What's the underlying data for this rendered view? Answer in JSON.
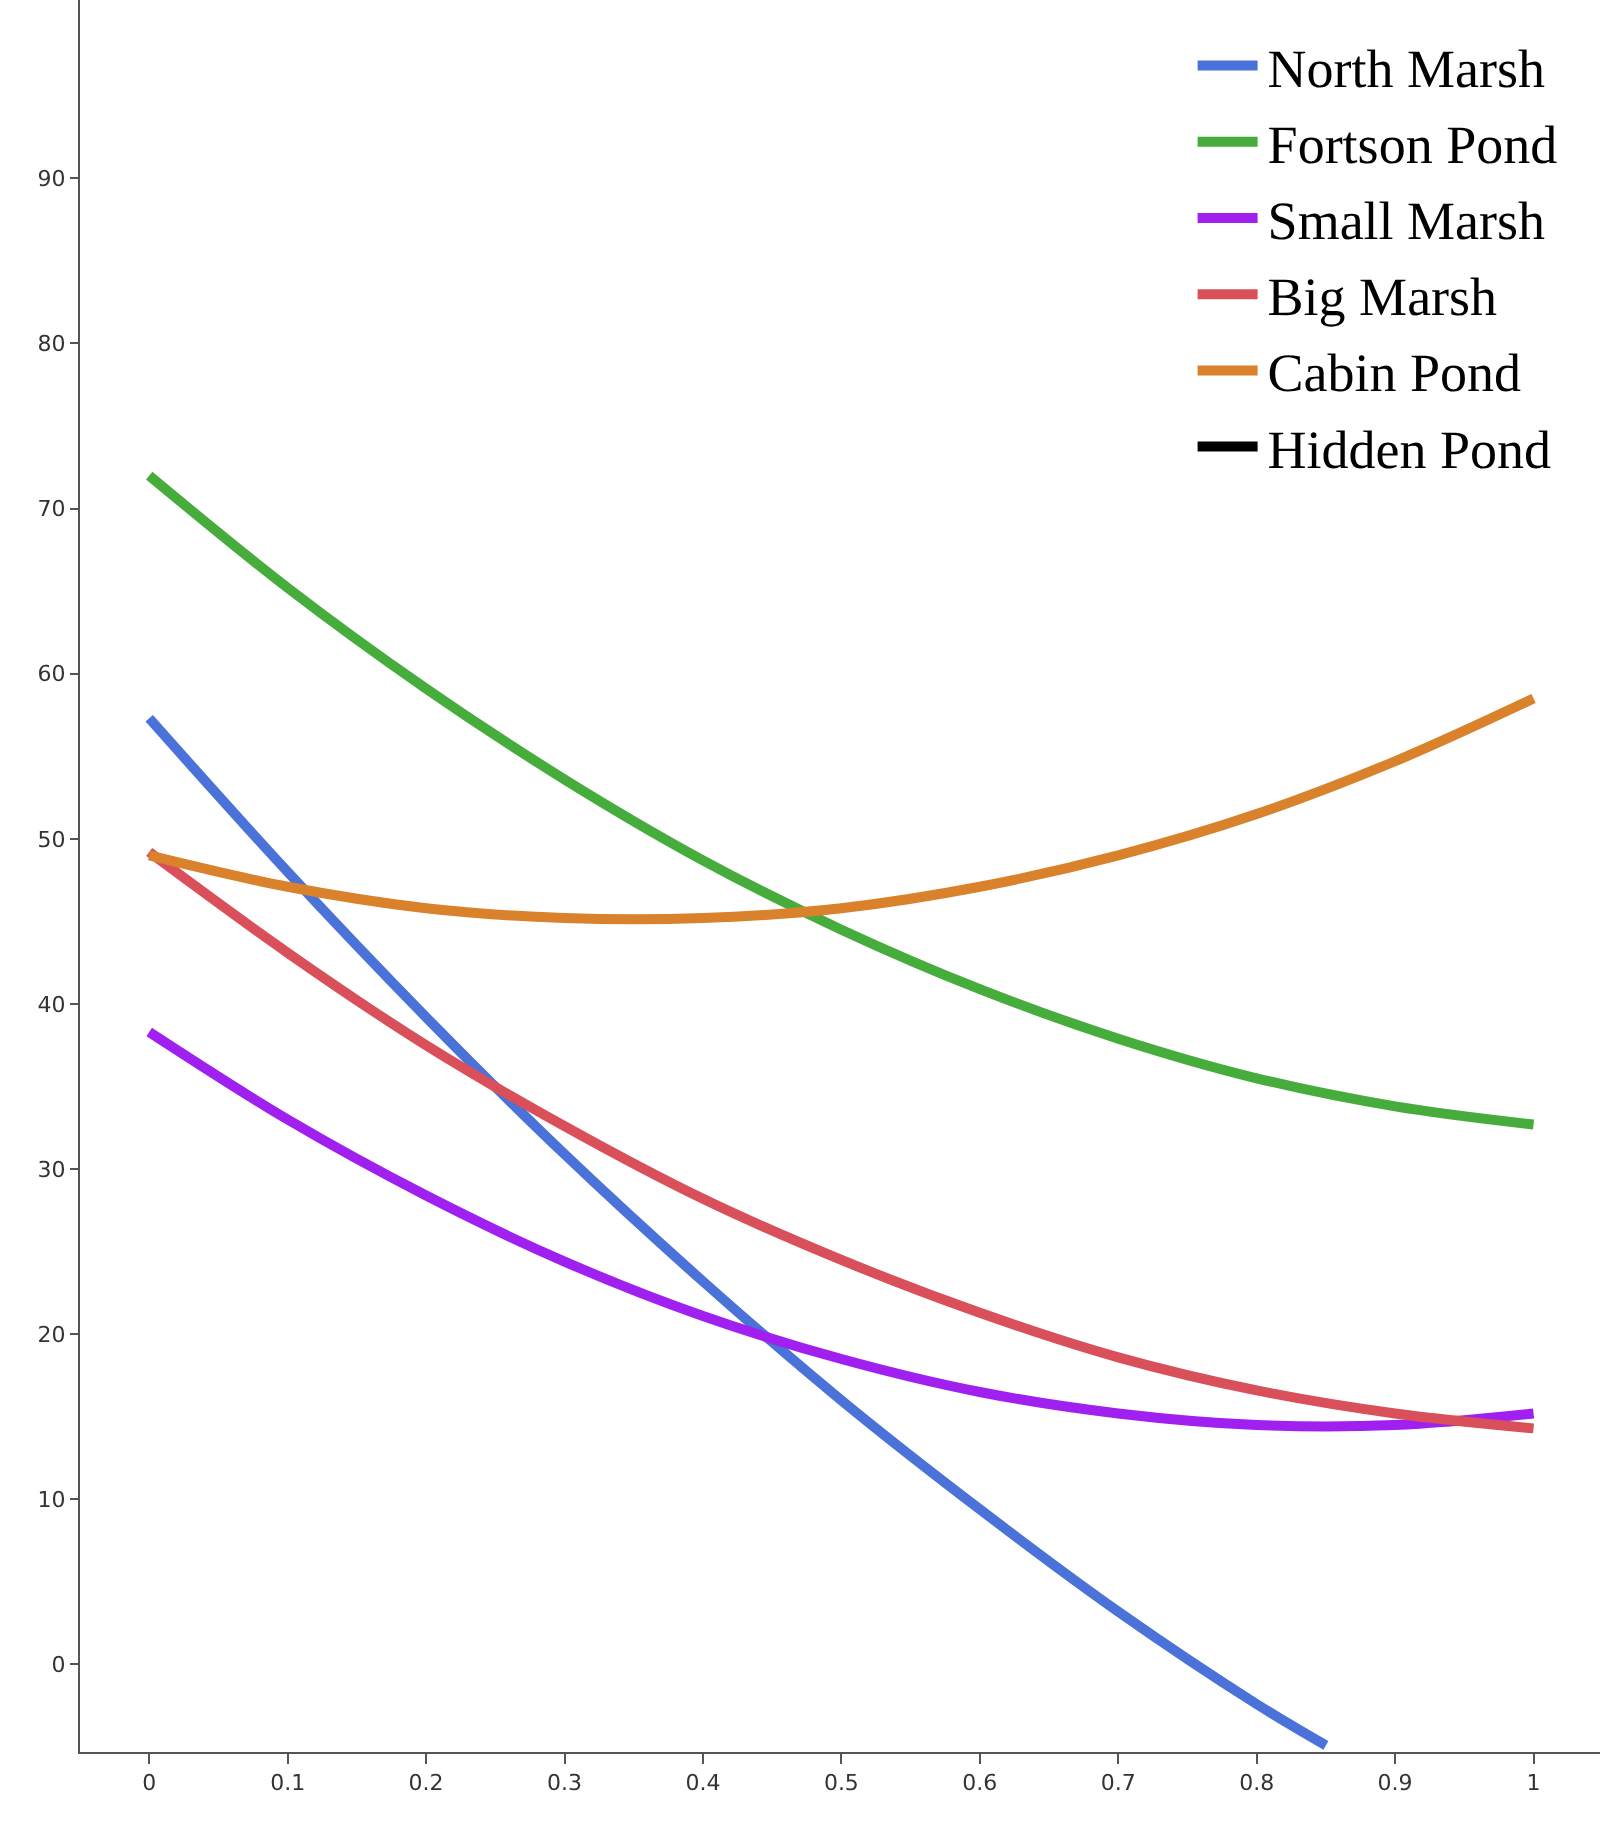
{
  "chart_data": {
    "type": "line",
    "x": [
      0,
      0.1,
      0.2,
      0.3,
      0.4,
      0.5,
      0.6,
      0.7,
      0.8,
      0.9,
      1
    ],
    "xlim": [
      -0.05,
      1.048
    ],
    "xticks": [
      0,
      0.1,
      0.2,
      0.3,
      0.4,
      0.5,
      0.6,
      0.7,
      0.8,
      0.9,
      1
    ],
    "ylim": [
      -5.3,
      100.8
    ],
    "yticks": [
      0,
      10,
      20,
      30,
      40,
      50,
      60,
      70,
      80,
      90
    ],
    "grid": false,
    "legend": "top right",
    "marker": "none",
    "line_style": "solid",
    "series": [
      {
        "name": "North Marsh",
        "color": "#4a72d8",
        "x": [
          0,
          0.1,
          0.2,
          0.3,
          0.4,
          0.5,
          0.6,
          0.7,
          0.8,
          0.85
        ],
        "values": [
          57.3,
          48.0,
          39.2,
          30.9,
          23.2,
          16.0,
          9.4,
          3.2,
          -2.4,
          -4.9
        ]
      },
      {
        "name": "Fortson Pond",
        "color": "#46ad3c",
        "values": [
          72.0,
          65.2,
          59.1,
          53.6,
          48.7,
          44.5,
          40.9,
          37.9,
          35.5,
          33.8,
          32.7
        ]
      },
      {
        "name": "Small Marsh",
        "color": "#a020f0",
        "values": [
          38.3,
          33.0,
          28.4,
          24.4,
          21.1,
          18.5,
          16.5,
          15.2,
          14.5,
          14.5,
          15.2
        ]
      },
      {
        "name": "Big Marsh",
        "color": "#d9505a",
        "values": [
          49.2,
          43.1,
          37.5,
          32.6,
          28.2,
          24.5,
          21.3,
          18.6,
          16.6,
          15.2,
          14.3
        ]
      },
      {
        "name": "Cabin Pond",
        "color": "#d9822b",
        "values": [
          49.0,
          47.1,
          45.8,
          45.2,
          45.2,
          45.8,
          47.1,
          49.0,
          51.5,
          54.7,
          58.5
        ]
      },
      {
        "name": "Hidden Pond",
        "color": "#000000",
        "values": [
          null,
          null,
          null,
          null,
          null,
          null,
          null,
          null,
          null,
          null,
          null
        ]
      }
    ]
  }
}
